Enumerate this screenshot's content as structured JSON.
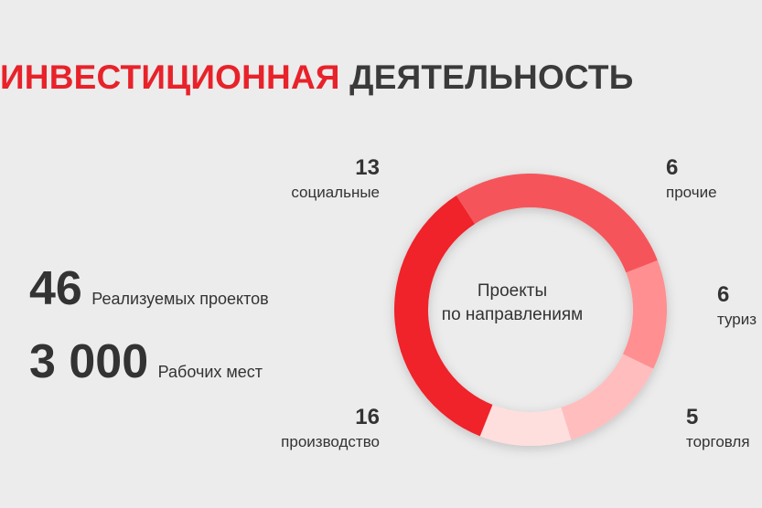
{
  "title": {
    "accent": "ИНВЕСТИЦИОННАЯ",
    "rest": "ДЕЯТЕЛЬНОСТЬ"
  },
  "stats": {
    "projects": {
      "value": "46",
      "label": "Реализуемых проектов"
    },
    "jobs": {
      "value": "3 000",
      "label": "Рабочих мест"
    }
  },
  "chart_data": {
    "type": "pie",
    "center_label": [
      "Проекты",
      "по направлениям"
    ],
    "segments": [
      {
        "name": "социальные",
        "value": 13,
        "color": "#f5555a"
      },
      {
        "name": "прочие",
        "value": 6,
        "color": "#ff8f91"
      },
      {
        "name": "туриз",
        "value": 6,
        "color": "#ffbdbe"
      },
      {
        "name": "торговля",
        "value": 5,
        "color": "#ffdede"
      },
      {
        "name": "производство",
        "value": 16,
        "color": "#f0242c"
      }
    ]
  }
}
